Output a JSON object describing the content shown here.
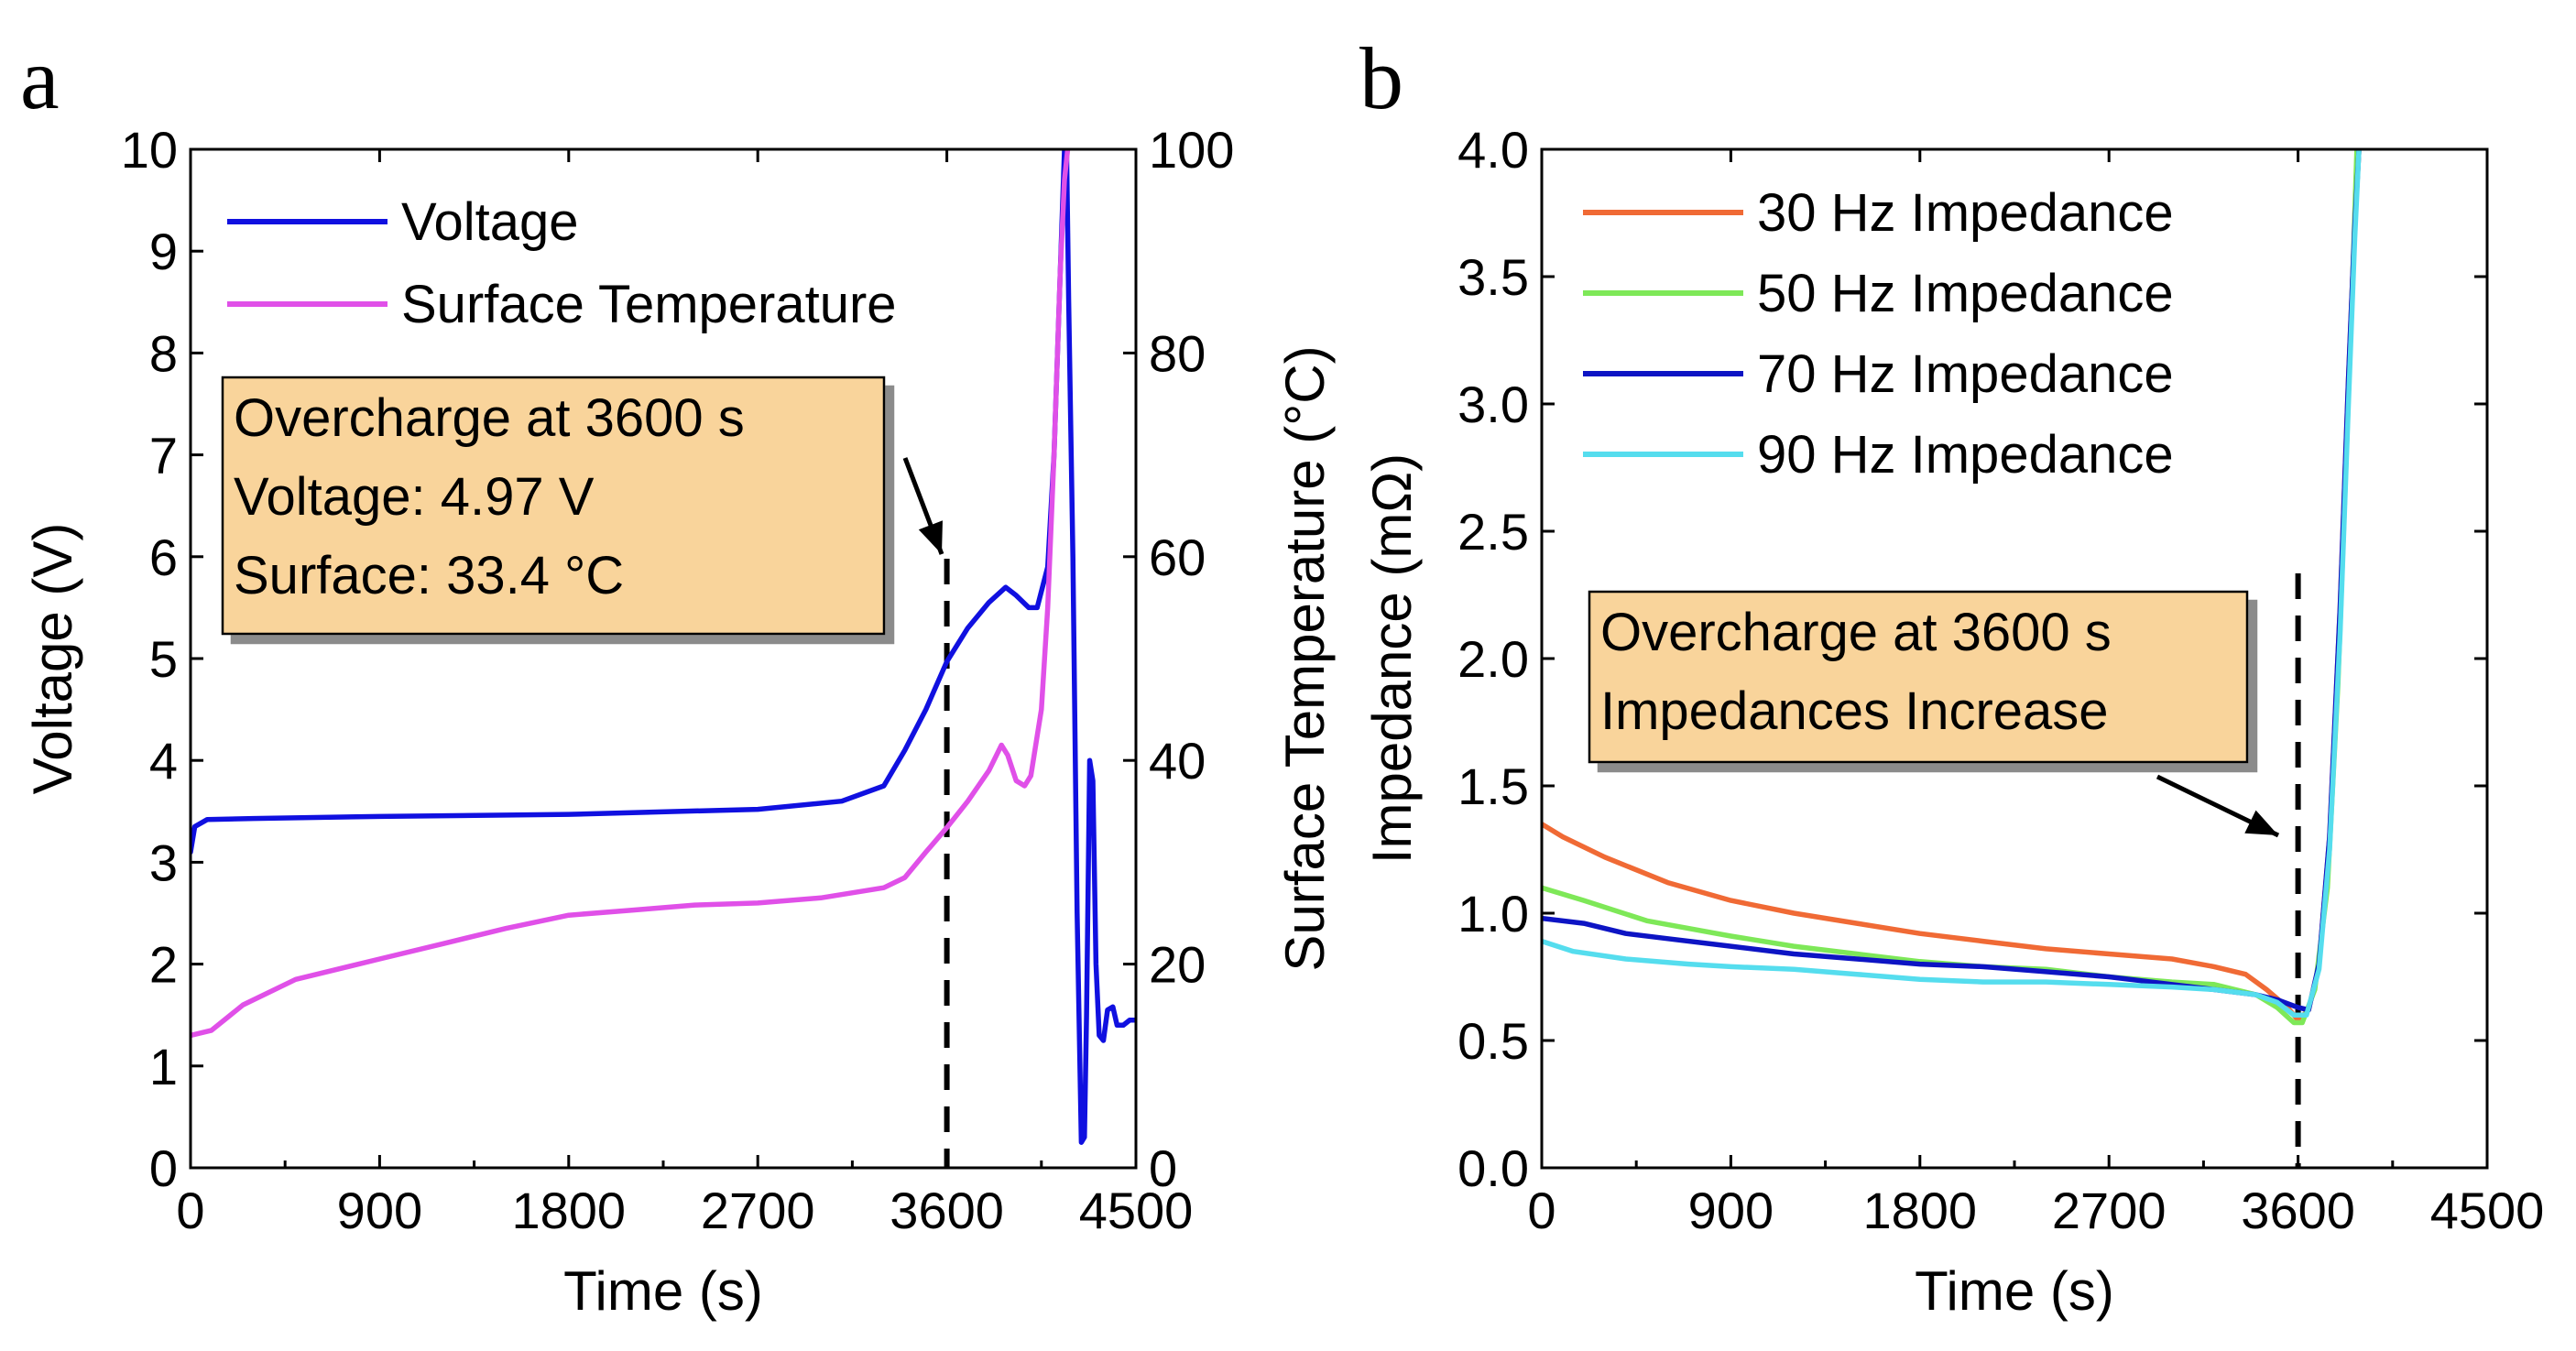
{
  "chart_data": [
    {
      "panel": "a",
      "type": "line",
      "xlabel": "Time (s)",
      "ylabel": "Voltage (V)",
      "y2label": "Surface Temperature (°C)",
      "xlim": [
        0,
        4500
      ],
      "ylim": [
        0,
        10
      ],
      "y2lim": [
        0,
        100
      ],
      "xticks": [
        "0",
        "900",
        "1800",
        "2700",
        "3600",
        "4500"
      ],
      "yticks": [
        "0",
        "1",
        "2",
        "3",
        "4",
        "5",
        "6",
        "7",
        "8",
        "9",
        "10"
      ],
      "y2ticks": [
        "0",
        "20",
        "40",
        "60",
        "80",
        "100"
      ],
      "legend_position": "top-left",
      "series": [
        {
          "name": "Voltage",
          "axis": "left",
          "color": "#1010e0",
          "points": [
            [
              0,
              3.1
            ],
            [
              20,
              3.35
            ],
            [
              80,
              3.42
            ],
            [
              300,
              3.43
            ],
            [
              900,
              3.45
            ],
            [
              1800,
              3.47
            ],
            [
              2700,
              3.52
            ],
            [
              3100,
              3.6
            ],
            [
              3300,
              3.75
            ],
            [
              3400,
              4.1
            ],
            [
              3500,
              4.5
            ],
            [
              3600,
              4.97
            ],
            [
              3700,
              5.3
            ],
            [
              3800,
              5.55
            ],
            [
              3880,
              5.7
            ],
            [
              3930,
              5.62
            ],
            [
              3990,
              5.5
            ],
            [
              4030,
              5.5
            ],
            [
              4080,
              5.9
            ],
            [
              4110,
              7.0
            ],
            [
              4140,
              8.8
            ],
            [
              4160,
              10
            ],
            [
              4170,
              10
            ],
            [
              4180,
              8.5
            ],
            [
              4200,
              6.0
            ],
            [
              4220,
              2.5
            ],
            [
              4240,
              0.25
            ],
            [
              4255,
              0.3
            ],
            [
              4265,
              1.5
            ],
            [
              4280,
              4.0
            ],
            [
              4295,
              3.8
            ],
            [
              4310,
              2.0
            ],
            [
              4325,
              1.3
            ],
            [
              4345,
              1.25
            ],
            [
              4365,
              1.55
            ],
            [
              4390,
              1.58
            ],
            [
              4410,
              1.4
            ],
            [
              4440,
              1.4
            ],
            [
              4470,
              1.45
            ],
            [
              4500,
              1.45
            ]
          ]
        },
        {
          "name": "Surface Temperature",
          "axis": "right",
          "color": "#e050e8",
          "points": [
            [
              0,
              13
            ],
            [
              100,
              13.5
            ],
            [
              250,
              16
            ],
            [
              500,
              18.5
            ],
            [
              900,
              20.5
            ],
            [
              1200,
              22
            ],
            [
              1500,
              23.5
            ],
            [
              1800,
              24.8
            ],
            [
              2100,
              25.3
            ],
            [
              2400,
              25.8
            ],
            [
              2700,
              26
            ],
            [
              3000,
              26.5
            ],
            [
              3300,
              27.5
            ],
            [
              3400,
              28.5
            ],
            [
              3500,
              31
            ],
            [
              3600,
              33.4
            ],
            [
              3700,
              36
            ],
            [
              3800,
              39
            ],
            [
              3860,
              41.5
            ],
            [
              3890,
              40.5
            ],
            [
              3930,
              38
            ],
            [
              3970,
              37.5
            ],
            [
              4000,
              38.5
            ],
            [
              4050,
              45
            ],
            [
              4080,
              55
            ],
            [
              4110,
              70
            ],
            [
              4140,
              88
            ],
            [
              4160,
              97
            ],
            [
              4175,
              100
            ]
          ]
        }
      ],
      "annotation": {
        "lines": [
          "Overcharge at 3600 s",
          "Voltage: 4.97 V",
          "Surface: 33.4 °C"
        ],
        "marker_x": 3600
      }
    },
    {
      "panel": "b",
      "type": "line",
      "xlabel": "Time (s)",
      "ylabel": "Impedance (mΩ)",
      "xlim": [
        0,
        4500
      ],
      "ylim": [
        0,
        4
      ],
      "xticks": [
        "0",
        "900",
        "1800",
        "2700",
        "3600",
        "4500"
      ],
      "yticks": [
        "0.0",
        "0.5",
        "1.0",
        "1.5",
        "2.0",
        "2.5",
        "3.0",
        "3.5",
        "4.0"
      ],
      "legend_position": "top-left",
      "series": [
        {
          "name": "30 Hz Impedance",
          "color": "#f06a35",
          "points": [
            [
              0,
              1.35
            ],
            [
              100,
              1.3
            ],
            [
              300,
              1.22
            ],
            [
              600,
              1.12
            ],
            [
              900,
              1.05
            ],
            [
              1200,
              1.0
            ],
            [
              1500,
              0.96
            ],
            [
              1800,
              0.92
            ],
            [
              2100,
              0.89
            ],
            [
              2400,
              0.86
            ],
            [
              2700,
              0.84
            ],
            [
              3000,
              0.82
            ],
            [
              3200,
              0.79
            ],
            [
              3350,
              0.76
            ],
            [
              3450,
              0.7
            ],
            [
              3550,
              0.63
            ],
            [
              3600,
              0.58
            ],
            [
              3650,
              0.62
            ],
            [
              3700,
              0.8
            ],
            [
              3750,
              1.3
            ],
            [
              3800,
              2.2
            ],
            [
              3840,
              3.1
            ],
            [
              3870,
              3.7
            ],
            [
              3890,
              4.0
            ]
          ]
        },
        {
          "name": "50 Hz Impedance",
          "color": "#7ee858",
          "points": [
            [
              0,
              1.1
            ],
            [
              200,
              1.05
            ],
            [
              500,
              0.97
            ],
            [
              900,
              0.91
            ],
            [
              1200,
              0.87
            ],
            [
              1500,
              0.84
            ],
            [
              1800,
              0.81
            ],
            [
              2100,
              0.79
            ],
            [
              2400,
              0.78
            ],
            [
              2700,
              0.75
            ],
            [
              3000,
              0.73
            ],
            [
              3200,
              0.72
            ],
            [
              3400,
              0.68
            ],
            [
              3500,
              0.63
            ],
            [
              3580,
              0.57
            ],
            [
              3620,
              0.57
            ],
            [
              3680,
              0.7
            ],
            [
              3740,
              1.1
            ],
            [
              3790,
              1.9
            ],
            [
              3830,
              2.8
            ],
            [
              3860,
              3.5
            ],
            [
              3880,
              4.0
            ]
          ]
        },
        {
          "name": "70 Hz Impedance",
          "color": "#0d14c4",
          "points": [
            [
              0,
              0.98
            ],
            [
              200,
              0.96
            ],
            [
              400,
              0.92
            ],
            [
              600,
              0.9
            ],
            [
              900,
              0.87
            ],
            [
              1200,
              0.84
            ],
            [
              1500,
              0.82
            ],
            [
              1800,
              0.8
            ],
            [
              2100,
              0.79
            ],
            [
              2400,
              0.77
            ],
            [
              2700,
              0.75
            ],
            [
              3000,
              0.72
            ],
            [
              3200,
              0.7
            ],
            [
              3400,
              0.68
            ],
            [
              3500,
              0.66
            ],
            [
              3600,
              0.63
            ],
            [
              3650,
              0.62
            ],
            [
              3700,
              0.8
            ],
            [
              3750,
              1.3
            ],
            [
              3800,
              2.2
            ],
            [
              3840,
              3.1
            ],
            [
              3870,
              3.7
            ],
            [
              3890,
              4.0
            ]
          ]
        },
        {
          "name": "90 Hz Impedance",
          "color": "#55ddee",
          "points": [
            [
              0,
              0.89
            ],
            [
              150,
              0.85
            ],
            [
              400,
              0.82
            ],
            [
              700,
              0.8
            ],
            [
              900,
              0.79
            ],
            [
              1200,
              0.78
            ],
            [
              1500,
              0.76
            ],
            [
              1800,
              0.74
            ],
            [
              2100,
              0.73
            ],
            [
              2400,
              0.73
            ],
            [
              2700,
              0.72
            ],
            [
              3000,
              0.71
            ],
            [
              3200,
              0.7
            ],
            [
              3400,
              0.68
            ],
            [
              3500,
              0.65
            ],
            [
              3580,
              0.6
            ],
            [
              3640,
              0.6
            ],
            [
              3700,
              0.78
            ],
            [
              3750,
              1.25
            ],
            [
              3800,
              2.1
            ],
            [
              3840,
              3.0
            ],
            [
              3870,
              3.65
            ],
            [
              3890,
              4.0
            ]
          ]
        }
      ],
      "annotation": {
        "lines": [
          "Overcharge at 3600 s",
          "Impedances Increase"
        ],
        "marker_x": 3600
      }
    }
  ]
}
